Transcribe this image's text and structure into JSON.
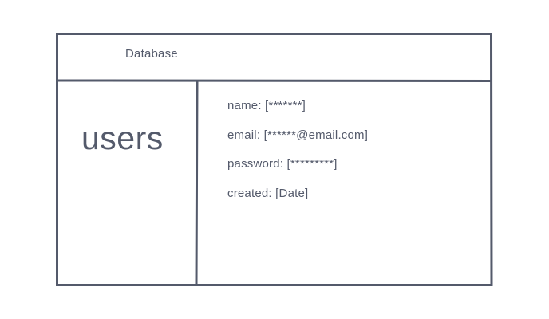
{
  "diagram": {
    "header": {
      "title": "Database"
    },
    "table": {
      "name": "users",
      "fields": [
        {
          "label": "name: [*******]"
        },
        {
          "label": "email: [******@email.com]"
        },
        {
          "label": "password: [*********]"
        },
        {
          "label": "created: [Date]"
        }
      ]
    },
    "colors": {
      "stroke": "#545a6b",
      "text": "#545a6b",
      "background": "#ffffff"
    }
  }
}
